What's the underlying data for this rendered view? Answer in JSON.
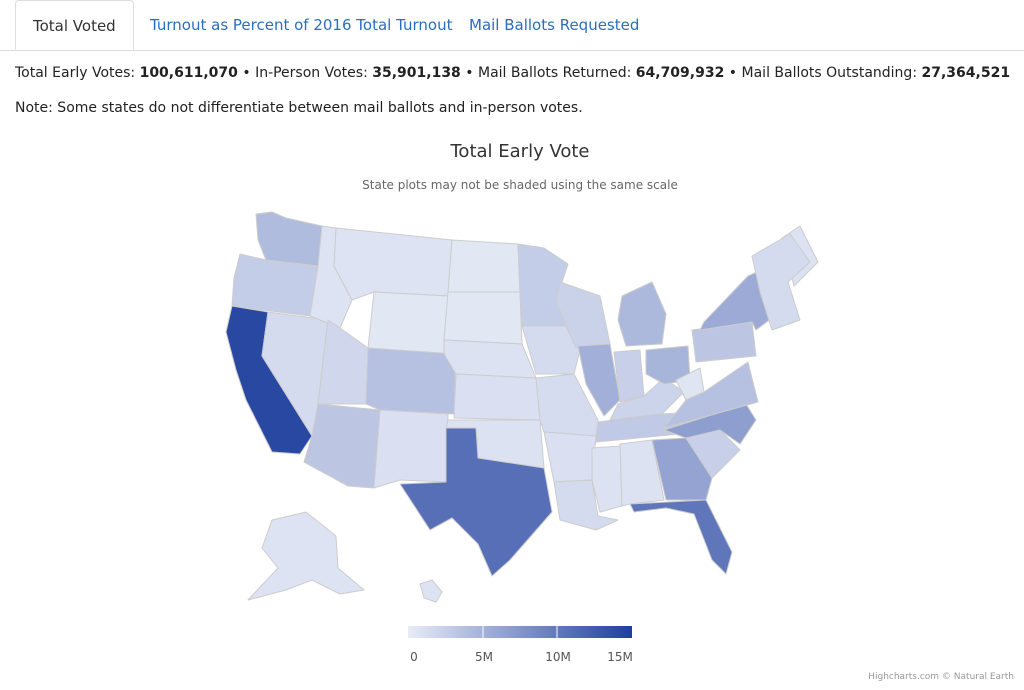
{
  "tabs": [
    {
      "label": "Total Voted",
      "active": true
    },
    {
      "label": "Turnout as Percent of 2016 Total Turnout",
      "active": false
    },
    {
      "label": "Mail Ballots Requested",
      "active": false
    }
  ],
  "stats": {
    "total_label": "Total Early Votes:",
    "total_value": "100,611,070",
    "inperson_label": "In-Person Votes:",
    "inperson_value": "35,901,138",
    "returned_label": "Mail Ballots Returned:",
    "returned_value": "64,709,932",
    "outstanding_label": "Mail Ballots Outstanding:",
    "outstanding_value": "27,364,521",
    "separator": "•"
  },
  "note": "Note: Some states do not differentiate between mail ballots and in-person votes.",
  "chart": {
    "title": "Total Early Vote",
    "subtitle": "State plots may not be shaded using the same scale",
    "credits": "Highcharts.com © Natural Earth"
  },
  "colors": {
    "low": "#e8ecf7",
    "high": "#1f3f9e",
    "state_border": "#cccccc",
    "tab_link": "#2a6ebd"
  },
  "chart_data": {
    "type": "choropleth",
    "legend": {
      "min": 0,
      "max": 15000000,
      "ticks": [
        "0",
        "5M",
        "10M",
        "15M"
      ]
    },
    "states": [
      {
        "code": "WA",
        "level": 0.28
      },
      {
        "code": "OR",
        "level": 0.18
      },
      {
        "code": "CA",
        "level": 0.95
      },
      {
        "code": "NV",
        "level": 0.1
      },
      {
        "code": "ID",
        "level": 0.05
      },
      {
        "code": "MT",
        "level": 0.05
      },
      {
        "code": "WY",
        "level": 0.03
      },
      {
        "code": "UT",
        "level": 0.12
      },
      {
        "code": "AZ",
        "level": 0.22
      },
      {
        "code": "NM",
        "level": 0.07
      },
      {
        "code": "CO",
        "level": 0.25
      },
      {
        "code": "ND",
        "level": 0.03
      },
      {
        "code": "SD",
        "level": 0.03
      },
      {
        "code": "NE",
        "level": 0.06
      },
      {
        "code": "KS",
        "level": 0.07
      },
      {
        "code": "OK",
        "level": 0.06
      },
      {
        "code": "TX",
        "level": 0.72
      },
      {
        "code": "MN",
        "level": 0.18
      },
      {
        "code": "IA",
        "level": 0.1
      },
      {
        "code": "MO",
        "level": 0.09
      },
      {
        "code": "AR",
        "level": 0.07
      },
      {
        "code": "LA",
        "level": 0.1
      },
      {
        "code": "WI",
        "level": 0.15
      },
      {
        "code": "IL",
        "level": 0.35
      },
      {
        "code": "MS",
        "level": 0.06
      },
      {
        "code": "MI",
        "level": 0.3
      },
      {
        "code": "IN",
        "level": 0.16
      },
      {
        "code": "KY",
        "level": 0.14
      },
      {
        "code": "TN",
        "level": 0.2
      },
      {
        "code": "AL",
        "level": 0.06
      },
      {
        "code": "OH",
        "level": 0.32
      },
      {
        "code": "WV",
        "level": 0.04
      },
      {
        "code": "GA",
        "level": 0.42
      },
      {
        "code": "FL",
        "level": 0.68
      },
      {
        "code": "SC",
        "level": 0.16
      },
      {
        "code": "NC",
        "level": 0.45
      },
      {
        "code": "VA",
        "level": 0.25
      },
      {
        "code": "PA",
        "level": 0.22
      },
      {
        "code": "NY",
        "level": 0.38
      },
      {
        "code": "ME",
        "level": 0.06
      },
      {
        "code": "NE-states",
        "level": 0.1
      },
      {
        "code": "AK",
        "level": 0.05
      },
      {
        "code": "HI",
        "level": 0.05
      }
    ]
  }
}
